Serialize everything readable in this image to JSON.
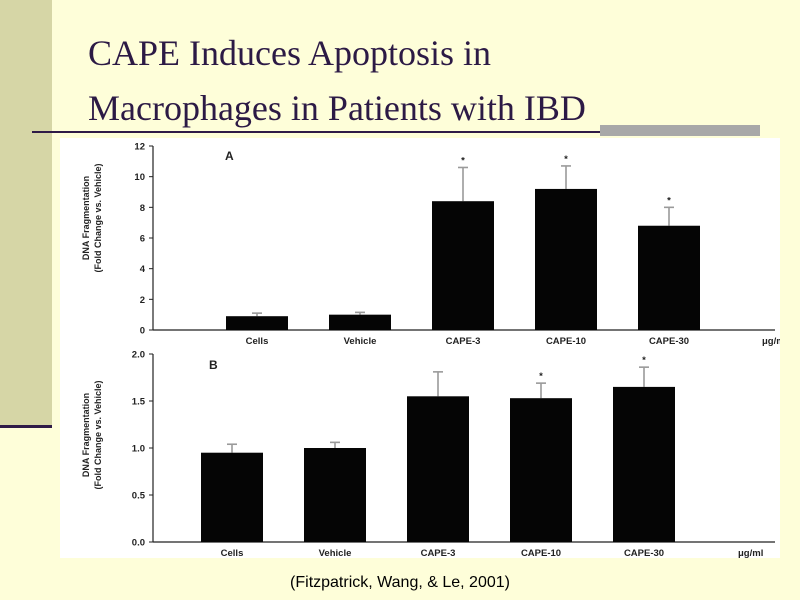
{
  "slide": {
    "title_line1": "CAPE Induces Apoptosis in",
    "title_line2": "Macrophages in Patients with IBD",
    "citation": "(Fitzpatrick, Wang, & Le, 2001)",
    "colors": {
      "background": "#fefed9",
      "left_bar": "#d6d6a6",
      "title": "#2c1a45",
      "accent": "#a8a8a8"
    }
  },
  "chart_data": [
    {
      "type": "bar",
      "panel": "A",
      "categories": [
        "Cells",
        "Vehicle",
        "CAPE-3",
        "CAPE-10",
        "CAPE-30"
      ],
      "values": [
        0.9,
        1.0,
        8.4,
        9.2,
        6.8
      ],
      "errors": [
        0.2,
        0.15,
        2.2,
        1.5,
        1.2
      ],
      "significant": [
        false,
        false,
        true,
        true,
        true
      ],
      "significance_marker": "*",
      "unit_label": "μg/ml",
      "ylabel_line1": "DNA Fragmentation",
      "ylabel_line2": "(Fold Change vs. Vehicle)",
      "ylim": [
        0,
        12
      ],
      "yticks": [
        0,
        2,
        4,
        6,
        8,
        10,
        12
      ],
      "ytick_labels": [
        "0",
        "2",
        "4",
        "6",
        "8",
        "10",
        "12"
      ],
      "grid": false
    },
    {
      "type": "bar",
      "panel": "B",
      "categories": [
        "Cells",
        "Vehicle",
        "CAPE-3",
        "CAPE-10",
        "CAPE-30"
      ],
      "values": [
        0.95,
        1.0,
        1.55,
        1.53,
        1.65
      ],
      "errors": [
        0.09,
        0.06,
        0.26,
        0.16,
        0.21
      ],
      "significant": [
        false,
        false,
        false,
        true,
        true
      ],
      "significance_marker": "*",
      "unit_label": "μg/ml",
      "ylabel_line1": "DNA Fragmentation",
      "ylabel_line2": "(Fold Change vs. Vehicle)",
      "ylim": [
        0,
        2
      ],
      "yticks": [
        0,
        0.5,
        1,
        1.5,
        2
      ],
      "ytick_labels": [
        "0.0",
        "0.5",
        "1.0",
        "1.5",
        "2.0"
      ],
      "grid": false
    }
  ]
}
